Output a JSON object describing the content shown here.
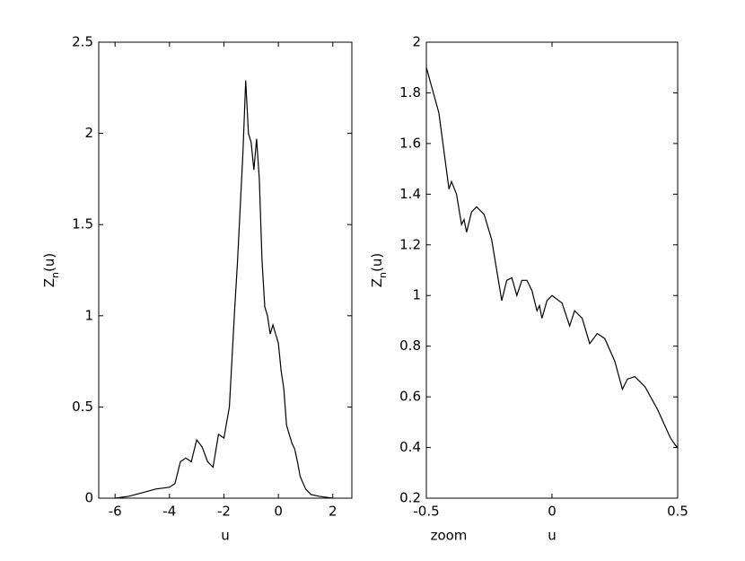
{
  "chart_data": [
    {
      "type": "line",
      "xlabel": "u",
      "ylabel": [
        "Z",
        "n",
        "(u)"
      ],
      "xlim": [
        -6.6,
        2.7
      ],
      "ylim": [
        0,
        2.5
      ],
      "xticks": [
        -6,
        -4,
        -2,
        0,
        2
      ],
      "yticks": [
        0,
        0.5,
        1,
        1.5,
        2,
        2.5
      ],
      "series": [
        {
          "color": "#000000",
          "x": [
            -6,
            -5.5,
            -5,
            -4.5,
            -4,
            -3.8,
            -3.6,
            -3.4,
            -3.2,
            -3.0,
            -2.8,
            -2.6,
            -2.4,
            -2.2,
            -2.0,
            -1.8,
            -1.6,
            -1.5,
            -1.4,
            -1.3,
            -1.2,
            -1.1,
            -1.0,
            -0.9,
            -0.8,
            -0.7,
            -0.6,
            -0.5,
            -0.4,
            -0.3,
            -0.2,
            0,
            0.1,
            0.2,
            0.3,
            0.4,
            0.5,
            0.6,
            0.7,
            0.8,
            1.0,
            1.2,
            1.5,
            2.0
          ],
          "values": [
            0,
            0.01,
            0.03,
            0.05,
            0.06,
            0.08,
            0.2,
            0.22,
            0.2,
            0.32,
            0.28,
            0.2,
            0.17,
            0.35,
            0.33,
            0.5,
            1.05,
            1.3,
            1.6,
            1.9,
            2.29,
            2.0,
            1.95,
            1.8,
            1.97,
            1.75,
            1.3,
            1.05,
            1.0,
            0.9,
            0.95,
            0.85,
            0.7,
            0.6,
            0.4,
            0.35,
            0.3,
            0.27,
            0.2,
            0.12,
            0.05,
            0.02,
            0.01,
            0
          ]
        }
      ]
    },
    {
      "type": "line",
      "xlabel": "u",
      "ylabel": [
        "Z",
        "n",
        "(u)"
      ],
      "annotation": "zoom",
      "xlim": [
        -0.5,
        0.5
      ],
      "ylim": [
        0.2,
        2
      ],
      "xticks": [
        -0.5,
        0,
        0.5
      ],
      "yticks": [
        0.2,
        0.4,
        0.6,
        0.8,
        1,
        1.2,
        1.4,
        1.6,
        1.8,
        2
      ],
      "series": [
        {
          "color": "#000000",
          "x": [
            -0.5,
            -0.45,
            -0.41,
            -0.4,
            -0.38,
            -0.36,
            -0.35,
            -0.34,
            -0.32,
            -0.3,
            -0.27,
            -0.24,
            -0.2,
            -0.18,
            -0.16,
            -0.14,
            -0.12,
            -0.1,
            -0.08,
            -0.06,
            -0.05,
            -0.04,
            -0.02,
            0,
            0.04,
            0.07,
            0.09,
            0.12,
            0.15,
            0.18,
            0.21,
            0.25,
            0.28,
            0.3,
            0.33,
            0.37,
            0.42,
            0.47,
            0.49,
            0.5
          ],
          "values": [
            1.9,
            1.72,
            1.42,
            1.45,
            1.4,
            1.28,
            1.3,
            1.25,
            1.33,
            1.35,
            1.32,
            1.22,
            0.98,
            1.06,
            1.07,
            1.0,
            1.06,
            1.06,
            1.02,
            0.94,
            0.96,
            0.91,
            0.98,
            1.0,
            0.97,
            0.88,
            0.94,
            0.91,
            0.81,
            0.85,
            0.83,
            0.74,
            0.63,
            0.67,
            0.68,
            0.64,
            0.55,
            0.44,
            0.41,
            0.4
          ]
        }
      ]
    }
  ]
}
